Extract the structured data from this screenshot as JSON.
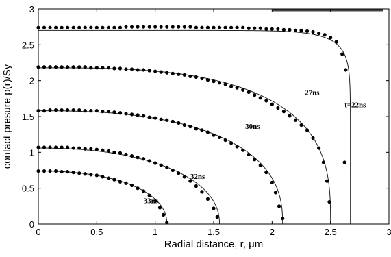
{
  "chart_data": {
    "type": "line",
    "xlabel": "Radial distance, r, μm",
    "ylabel": "contact presure p(r)/Sy",
    "xlim": [
      0,
      3
    ],
    "ylim": [
      0,
      3
    ],
    "xticks": [
      "0",
      "0.5",
      "1",
      "1.5",
      "2",
      "2.5",
      "3"
    ],
    "yticks": [
      "0",
      "0.5",
      "1",
      "1.5",
      "2",
      "2.5",
      "3"
    ],
    "grid": false,
    "series": [
      {
        "name": "t=22ns",
        "line": {
          "p0": 2.7,
          "a": 2.67,
          "n": 12
        },
        "points": [
          [
            0,
            2.74
          ],
          [
            0.05,
            2.74
          ],
          [
            0.1,
            2.74
          ],
          [
            0.15,
            2.74
          ],
          [
            0.2,
            2.74
          ],
          [
            0.25,
            2.74
          ],
          [
            0.3,
            2.74
          ],
          [
            0.35,
            2.74
          ],
          [
            0.4,
            2.74
          ],
          [
            0.45,
            2.74
          ],
          [
            0.5,
            2.74
          ],
          [
            0.55,
            2.74
          ],
          [
            0.6,
            2.74
          ],
          [
            0.65,
            2.74
          ],
          [
            0.7,
            2.74
          ],
          [
            0.75,
            2.75
          ],
          [
            0.8,
            2.75
          ],
          [
            0.85,
            2.75
          ],
          [
            0.9,
            2.75
          ],
          [
            0.95,
            2.75
          ],
          [
            1.0,
            2.75
          ],
          [
            1.05,
            2.75
          ],
          [
            1.1,
            2.75
          ],
          [
            1.15,
            2.75
          ],
          [
            1.2,
            2.75
          ],
          [
            1.25,
            2.75
          ],
          [
            1.3,
            2.75
          ],
          [
            1.35,
            2.74
          ],
          [
            1.4,
            2.74
          ],
          [
            1.45,
            2.74
          ],
          [
            1.5,
            2.74
          ],
          [
            1.55,
            2.74
          ],
          [
            1.6,
            2.74
          ],
          [
            1.65,
            2.74
          ],
          [
            1.7,
            2.74
          ],
          [
            1.75,
            2.74
          ],
          [
            1.8,
            2.73
          ],
          [
            1.85,
            2.73
          ],
          [
            1.9,
            2.73
          ],
          [
            1.95,
            2.72
          ],
          [
            2.0,
            2.72
          ],
          [
            2.05,
            2.72
          ],
          [
            2.1,
            2.71
          ],
          [
            2.15,
            2.71
          ],
          [
            2.2,
            2.7
          ],
          [
            2.25,
            2.7
          ],
          [
            2.3,
            2.69
          ],
          [
            2.35,
            2.68
          ],
          [
            2.4,
            2.66
          ],
          [
            2.45,
            2.64
          ],
          [
            2.5,
            2.6
          ],
          [
            2.55,
            2.54
          ],
          [
            2.6,
            2.37
          ],
          [
            2.63,
            2.15
          ],
          [
            2.62,
            0.86
          ]
        ]
      },
      {
        "name": "27ns",
        "line": {
          "p0": 2.18,
          "a": 2.5,
          "n": 3
        },
        "points": [
          [
            0,
            2.19
          ],
          [
            0.05,
            2.19
          ],
          [
            0.1,
            2.19
          ],
          [
            0.15,
            2.19
          ],
          [
            0.2,
            2.19
          ],
          [
            0.25,
            2.19
          ],
          [
            0.3,
            2.19
          ],
          [
            0.35,
            2.19
          ],
          [
            0.4,
            2.19
          ],
          [
            0.45,
            2.18
          ],
          [
            0.5,
            2.18
          ],
          [
            0.55,
            2.18
          ],
          [
            0.6,
            2.18
          ],
          [
            0.65,
            2.17
          ],
          [
            0.7,
            2.17
          ],
          [
            0.75,
            2.16
          ],
          [
            0.8,
            2.16
          ],
          [
            0.85,
            2.15
          ],
          [
            0.9,
            2.15
          ],
          [
            0.95,
            2.14
          ],
          [
            1.0,
            2.13
          ],
          [
            1.05,
            2.12
          ],
          [
            1.1,
            2.11
          ],
          [
            1.15,
            2.1
          ],
          [
            1.2,
            2.09
          ],
          [
            1.25,
            2.08
          ],
          [
            1.3,
            2.06
          ],
          [
            1.35,
            2.05
          ],
          [
            1.4,
            2.03
          ],
          [
            1.45,
            2.01
          ],
          [
            1.5,
            1.99
          ],
          [
            1.55,
            1.97
          ],
          [
            1.6,
            1.95
          ],
          [
            1.65,
            1.92
          ],
          [
            1.7,
            1.9
          ],
          [
            1.75,
            1.87
          ],
          [
            1.8,
            1.84
          ],
          [
            1.85,
            1.8
          ],
          [
            1.9,
            1.76
          ],
          [
            1.95,
            1.72
          ],
          [
            2.0,
            1.67
          ],
          [
            2.05,
            1.62
          ],
          [
            2.1,
            1.57
          ],
          [
            2.15,
            1.51
          ],
          [
            2.2,
            1.45
          ],
          [
            2.25,
            1.38
          ],
          [
            2.3,
            1.31
          ],
          [
            2.35,
            1.2
          ],
          [
            2.4,
            1.06
          ],
          [
            2.44,
            0.86
          ],
          [
            2.47,
            0.6
          ],
          [
            2.49,
            0.31
          ]
        ]
      },
      {
        "name": "30ns",
        "line": {
          "p0": 1.58,
          "a": 2.09,
          "n": 2.5
        },
        "points": [
          [
            0,
            1.58
          ],
          [
            0.05,
            1.58
          ],
          [
            0.1,
            1.59
          ],
          [
            0.15,
            1.59
          ],
          [
            0.2,
            1.59
          ],
          [
            0.25,
            1.59
          ],
          [
            0.3,
            1.59
          ],
          [
            0.35,
            1.59
          ],
          [
            0.4,
            1.58
          ],
          [
            0.45,
            1.58
          ],
          [
            0.5,
            1.58
          ],
          [
            0.55,
            1.57
          ],
          [
            0.6,
            1.57
          ],
          [
            0.65,
            1.56
          ],
          [
            0.7,
            1.55
          ],
          [
            0.75,
            1.54
          ],
          [
            0.8,
            1.53
          ],
          [
            0.85,
            1.52
          ],
          [
            0.9,
            1.51
          ],
          [
            0.95,
            1.49
          ],
          [
            1.0,
            1.48
          ],
          [
            1.05,
            1.46
          ],
          [
            1.1,
            1.45
          ],
          [
            1.15,
            1.43
          ],
          [
            1.2,
            1.41
          ],
          [
            1.25,
            1.38
          ],
          [
            1.3,
            1.36
          ],
          [
            1.35,
            1.33
          ],
          [
            1.4,
            1.31
          ],
          [
            1.45,
            1.28
          ],
          [
            1.5,
            1.24
          ],
          [
            1.55,
            1.21
          ],
          [
            1.6,
            1.17
          ],
          [
            1.65,
            1.13
          ],
          [
            1.7,
            1.08
          ],
          [
            1.75,
            1.03
          ],
          [
            1.8,
            0.97
          ],
          [
            1.85,
            0.9
          ],
          [
            1.9,
            0.82
          ],
          [
            1.95,
            0.72
          ],
          [
            2.0,
            0.58
          ],
          [
            2.03,
            0.44
          ],
          [
            2.06,
            0.25
          ],
          [
            2.09,
            0.08
          ]
        ]
      },
      {
        "name": "32ns",
        "line": {
          "p0": 1.06,
          "a": 1.55,
          "n": 2.2
        },
        "points": [
          [
            0,
            1.07
          ],
          [
            0.05,
            1.07
          ],
          [
            0.1,
            1.07
          ],
          [
            0.15,
            1.07
          ],
          [
            0.2,
            1.07
          ],
          [
            0.25,
            1.07
          ],
          [
            0.3,
            1.06
          ],
          [
            0.35,
            1.06
          ],
          [
            0.4,
            1.05
          ],
          [
            0.45,
            1.05
          ],
          [
            0.5,
            1.04
          ],
          [
            0.55,
            1.03
          ],
          [
            0.6,
            1.02
          ],
          [
            0.65,
            1.0
          ],
          [
            0.7,
            0.99
          ],
          [
            0.75,
            0.97
          ],
          [
            0.8,
            0.95
          ],
          [
            0.85,
            0.93
          ],
          [
            0.9,
            0.91
          ],
          [
            0.95,
            0.88
          ],
          [
            1.0,
            0.85
          ],
          [
            1.05,
            0.82
          ],
          [
            1.1,
            0.79
          ],
          [
            1.15,
            0.75
          ],
          [
            1.2,
            0.71
          ],
          [
            1.25,
            0.66
          ],
          [
            1.3,
            0.6
          ],
          [
            1.35,
            0.53
          ],
          [
            1.4,
            0.45
          ],
          [
            1.45,
            0.35
          ],
          [
            1.5,
            0.22
          ],
          [
            1.53,
            0.1
          ]
        ]
      },
      {
        "name": "33ns",
        "line": {
          "p0": 0.74,
          "a": 1.1,
          "n": 2.2
        },
        "points": [
          [
            0,
            0.74
          ],
          [
            0.05,
            0.74
          ],
          [
            0.1,
            0.74
          ],
          [
            0.15,
            0.74
          ],
          [
            0.2,
            0.73
          ],
          [
            0.25,
            0.73
          ],
          [
            0.3,
            0.72
          ],
          [
            0.35,
            0.71
          ],
          [
            0.4,
            0.7
          ],
          [
            0.45,
            0.69
          ],
          [
            0.5,
            0.68
          ],
          [
            0.55,
            0.66
          ],
          [
            0.6,
            0.64
          ],
          [
            0.65,
            0.62
          ],
          [
            0.7,
            0.59
          ],
          [
            0.75,
            0.57
          ],
          [
            0.8,
            0.54
          ],
          [
            0.85,
            0.5
          ],
          [
            0.9,
            0.46
          ],
          [
            0.95,
            0.4
          ],
          [
            1.0,
            0.32
          ],
          [
            1.04,
            0.23
          ],
          [
            1.07,
            0.13
          ],
          [
            1.1,
            0.02
          ]
        ]
      }
    ]
  }
}
